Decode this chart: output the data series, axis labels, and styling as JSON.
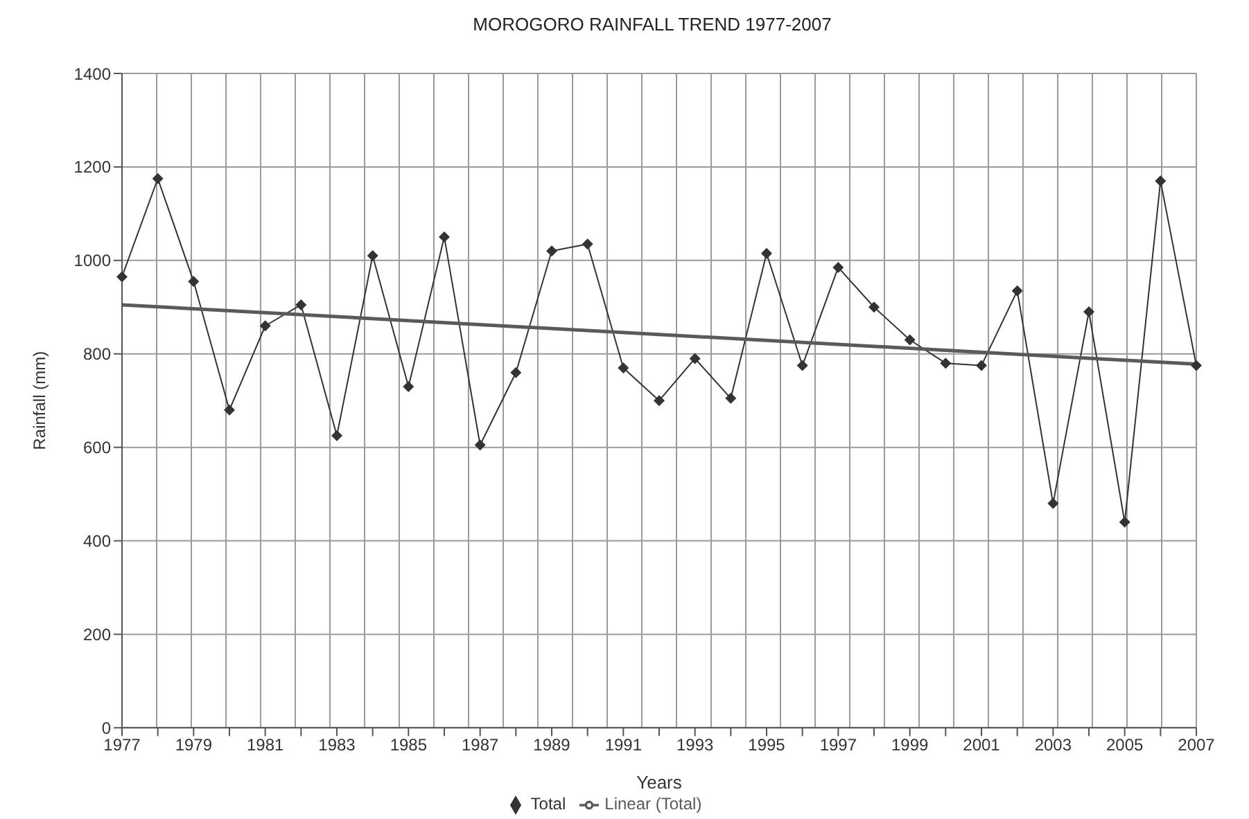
{
  "chart_data": {
    "type": "line",
    "title": "MOROGORO RAINFALL TREND 1977-2007",
    "xlabel": "Years",
    "ylabel": "Rainfall (mm)",
    "categories": [
      "1977",
      null,
      "1979",
      null,
      "1981",
      null,
      "1983",
      null,
      "1985",
      null,
      "1987",
      null,
      "1989",
      null,
      "1991",
      null,
      "1993",
      null,
      "1995",
      null,
      "1997",
      null,
      "1999",
      null,
      "2001",
      null,
      "2003",
      null,
      "2005",
      null,
      "2007"
    ],
    "series": [
      {
        "name": "Total",
        "color": "#333333",
        "values": [
          965,
          1175,
          955,
          680,
          860,
          905,
          625,
          1010,
          730,
          1050,
          605,
          760,
          1020,
          1035,
          770,
          700,
          790,
          705,
          1015,
          775,
          985,
          900,
          830,
          780,
          775,
          935,
          480,
          890,
          440,
          1170,
          775
        ]
      },
      {
        "name": "Linear (Total)",
        "color": "#5a5a5a",
        "type": "line",
        "marker": "none",
        "values": [
          905,
          null,
          null,
          null,
          null,
          null,
          null,
          null,
          null,
          null,
          null,
          null,
          null,
          null,
          null,
          null,
          null,
          null,
          null,
          null,
          null,
          null,
          null,
          null,
          null,
          null,
          null,
          null,
          null,
          null,
          778
        ]
      }
    ],
    "ylim": [
      0,
      1400
    ],
    "yticks": [
      0,
      200,
      400,
      600,
      800,
      1000,
      1200,
      1400
    ],
    "grid": true,
    "legend": "bottom",
    "marker": "diamond",
    "line_style": "solid"
  }
}
